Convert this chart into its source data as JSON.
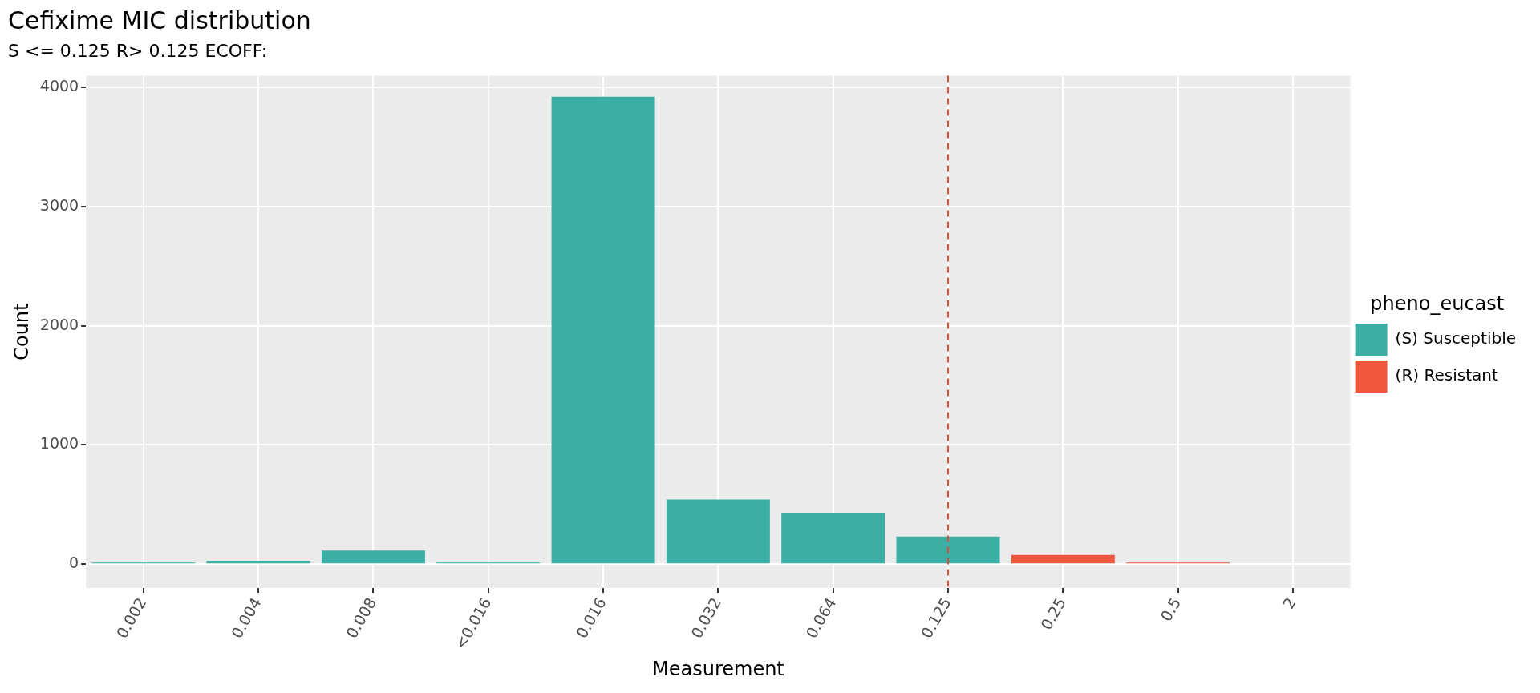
{
  "chart_data": {
    "type": "bar",
    "title": "Cefixime MIC distribution",
    "subtitle": "S <= 0.125 R> 0.125 ECOFF:",
    "xlabel": "Measurement",
    "ylabel": "Count",
    "legend_title": "pheno_eucast",
    "categories": [
      "0.002",
      "0.004",
      "0.008",
      "<0.016",
      "0.016",
      "0.032",
      "0.064",
      "0.125",
      "0.25",
      "0.5",
      "2"
    ],
    "stacked": true,
    "series": [
      {
        "name": "(S) Susceptible",
        "color": "#3cafa5",
        "values": [
          5,
          28,
          113,
          5,
          3922,
          543,
          431,
          232,
          null,
          null,
          null
        ]
      },
      {
        "name": "(R) Resistant",
        "color": "#f0563c",
        "values": [
          null,
          null,
          null,
          null,
          null,
          null,
          null,
          null,
          77,
          12,
          null
        ]
      }
    ],
    "ylim": [
      -200,
      4100
    ],
    "yticks": [
      0,
      1000,
      2000,
      3000,
      4000
    ],
    "grid": true,
    "legend": "right",
    "ref_lines": [
      {
        "axis": "x",
        "value": "0.125",
        "color": "#e05038",
        "line_style": "dashed"
      }
    ]
  }
}
